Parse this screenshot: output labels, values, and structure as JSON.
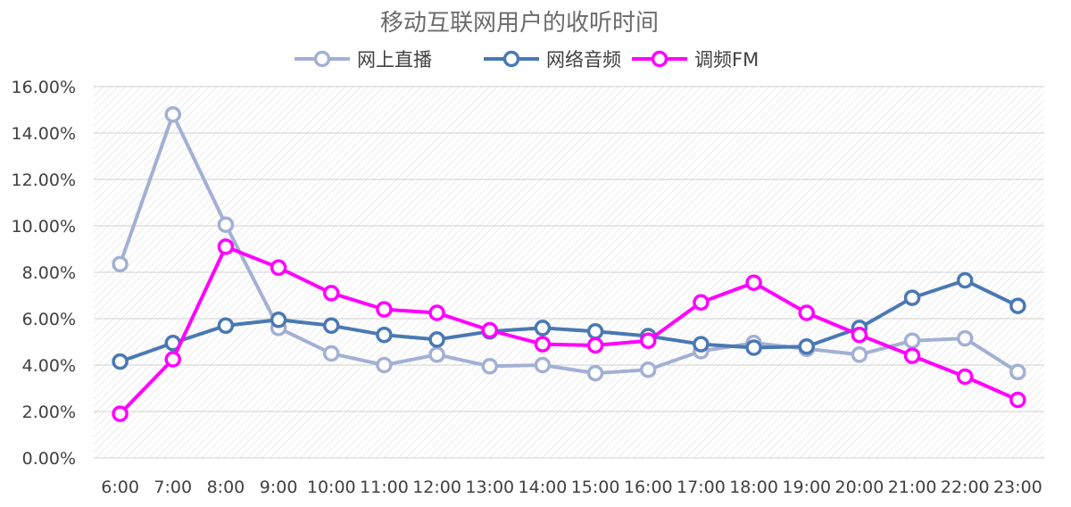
{
  "chart_data": {
    "type": "line",
    "title": "移动互联网用户的收听时间",
    "xlabel": "",
    "ylabel": "",
    "categories": [
      "6:00",
      "7:00",
      "8:00",
      "9:00",
      "10:00",
      "11:00",
      "12:00",
      "13:00",
      "14:00",
      "15:00",
      "16:00",
      "17:00",
      "18:00",
      "19:00",
      "20:00",
      "21:00",
      "22:00",
      "23:00"
    ],
    "ylim": [
      0,
      16
    ],
    "yticks": [
      0,
      2,
      4,
      6,
      8,
      10,
      12,
      14,
      16
    ],
    "ytick_labels": [
      "0.00%",
      "2.00%",
      "4.00%",
      "6.00%",
      "8.00%",
      "10.00%",
      "12.00%",
      "14.00%",
      "16.00%"
    ],
    "grid": true,
    "legend_position": "top-center",
    "series": [
      {
        "name": "网上直播",
        "color": "#a2b0d3",
        "values": [
          8.35,
          14.8,
          10.05,
          5.6,
          4.5,
          4.0,
          4.45,
          3.95,
          4.0,
          3.65,
          3.8,
          4.6,
          4.95,
          4.7,
          4.45,
          5.05,
          5.15,
          3.7
        ]
      },
      {
        "name": "网络音频",
        "color": "#4a78b3",
        "values": [
          4.15,
          4.95,
          5.7,
          5.95,
          5.7,
          5.3,
          5.1,
          5.45,
          5.6,
          5.45,
          5.25,
          4.9,
          4.75,
          4.8,
          5.6,
          6.9,
          7.65,
          6.55
        ]
      },
      {
        "name": "调频FM",
        "color": "#ff00ff",
        "values": [
          1.9,
          4.25,
          9.1,
          8.2,
          7.1,
          6.4,
          6.25,
          5.5,
          4.9,
          4.85,
          5.05,
          6.7,
          7.55,
          6.25,
          5.3,
          4.4,
          3.5,
          2.5
        ]
      }
    ]
  }
}
